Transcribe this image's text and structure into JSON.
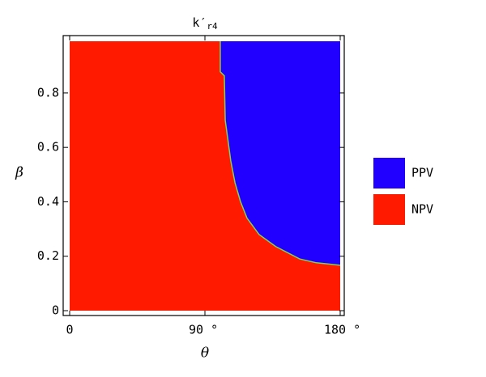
{
  "chart_data": {
    "type": "region",
    "title": {
      "main": "k′",
      "subscript": "r4"
    },
    "x_label": "θ",
    "y_label": "β",
    "xlim": [
      0,
      180
    ],
    "ylim": [
      0,
      0.99
    ],
    "xticks": [
      0,
      {
        "value": 90,
        "label": "90 °"
      },
      {
        "value": 180,
        "label": "180 °"
      }
    ],
    "yticks": [
      0,
      0.2,
      0.4,
      0.6,
      0.8
    ],
    "series": [
      {
        "name": "PPV",
        "color": "#2200ff"
      },
      {
        "name": "NPV",
        "color": "#ff1a00"
      }
    ],
    "boundary": {
      "color": "#7fd34e",
      "x": [
        100.2,
        100.2,
        102.9,
        103.5,
        107.2,
        110,
        113.7,
        118,
        126,
        137,
        153,
        164,
        180
      ],
      "y": [
        0.99,
        0.878,
        0.863,
        0.7,
        0.55,
        0.47,
        0.4,
        0.34,
        0.28,
        0.236,
        0.19,
        0.176,
        0.167
      ]
    }
  }
}
